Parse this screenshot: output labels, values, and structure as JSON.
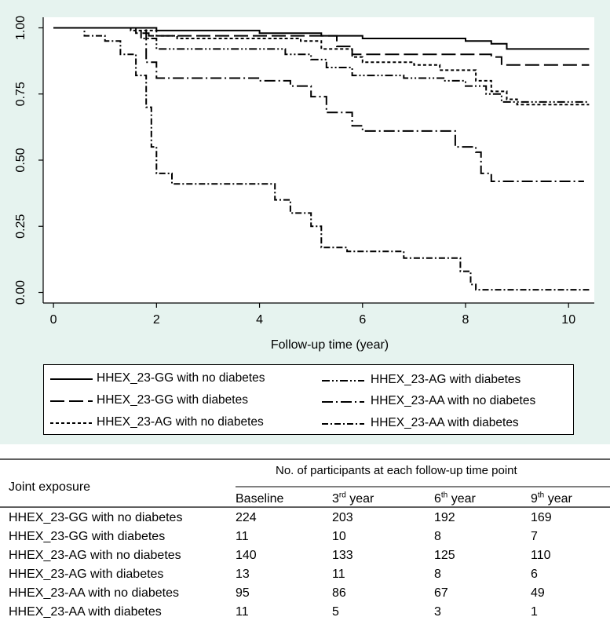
{
  "chart_data": {
    "type": "line",
    "step": true,
    "xlabel": "Follow-up time (year)",
    "ylabel": "",
    "xlim": [
      -0.2,
      10.5
    ],
    "ylim": [
      -0.04,
      1.04
    ],
    "xticks": [
      "0",
      "2",
      "4",
      "6",
      "8",
      "10"
    ],
    "yticks": [
      "0.00",
      "0.25",
      "0.50",
      "0.75",
      "1.00"
    ],
    "grid": false,
    "legend_position": "bottom",
    "series": [
      {
        "name": "HHEX_23-GG with no diabetes",
        "dash": "solid",
        "x": [
          0,
          2.0,
          4.0,
          5.2,
          6.0,
          8.0,
          8.5,
          8.8,
          10.4
        ],
        "y": [
          1.0,
          0.99,
          0.98,
          0.97,
          0.96,
          0.95,
          0.94,
          0.92,
          0.92
        ]
      },
      {
        "name": "HHEX_23-GG with diabetes",
        "dash": "long",
        "x": [
          0,
          1.6,
          1.85,
          5.5,
          5.8,
          8.5,
          8.7,
          10.4
        ],
        "y": [
          1.0,
          0.98,
          0.97,
          0.93,
          0.9,
          0.89,
          0.86,
          0.86
        ]
      },
      {
        "name": "HHEX_23-AG with no diabetes",
        "dash": "short",
        "x": [
          0,
          1.5,
          2.0,
          2.4,
          4.8,
          5.2,
          5.8,
          6.0,
          7.0,
          7.5,
          8.2,
          8.5,
          8.8,
          9.0,
          10.4
        ],
        "y": [
          1.0,
          0.99,
          0.97,
          0.96,
          0.95,
          0.92,
          0.89,
          0.87,
          0.86,
          0.84,
          0.8,
          0.76,
          0.73,
          0.71,
          0.71
        ]
      },
      {
        "name": "HHEX_23-AG with diabetes",
        "dash": "dashdotdot",
        "x": [
          0,
          1.7,
          2.0,
          4.0,
          4.5,
          5.0,
          5.3,
          5.8,
          6.8,
          7.6,
          8.0,
          8.4,
          8.7,
          10.4
        ],
        "y": [
          1.0,
          0.96,
          0.92,
          0.92,
          0.9,
          0.88,
          0.85,
          0.82,
          0.81,
          0.8,
          0.78,
          0.75,
          0.72,
          0.72
        ]
      },
      {
        "name": "HHEX_23-AA with no diabetes",
        "dash": "longdot",
        "x": [
          0,
          1.8,
          2.0,
          3.8,
          4.0,
          4.6,
          5.0,
          5.3,
          5.8,
          6.0,
          7.6,
          7.8,
          8.2,
          8.3,
          8.5,
          10.3
        ],
        "y": [
          1.0,
          0.87,
          0.81,
          0.81,
          0.8,
          0.78,
          0.74,
          0.68,
          0.63,
          0.61,
          0.61,
          0.55,
          0.53,
          0.45,
          0.42,
          0.42
        ]
      },
      {
        "name": "HHEX_23-AA with diabetes",
        "dash": "dashdot",
        "x": [
          0,
          0.6,
          1.0,
          1.3,
          1.6,
          1.8,
          1.9,
          2.0,
          2.3,
          4.0,
          4.3,
          4.6,
          5.0,
          5.2,
          5.7,
          6.8,
          7.9,
          8.1,
          8.2,
          10.4
        ],
        "y": [
          1.0,
          0.97,
          0.95,
          0.9,
          0.82,
          0.7,
          0.55,
          0.45,
          0.41,
          0.41,
          0.35,
          0.3,
          0.25,
          0.17,
          0.155,
          0.13,
          0.08,
          0.03,
          0.01,
          0.01
        ]
      }
    ]
  },
  "legend": {
    "entries": [
      "HHEX_23-GG with no diabetes",
      "HHEX_23-GG with diabetes",
      "HHEX_23-AG with no diabetes",
      "HHEX_23-AG with diabetes",
      "HHEX_23-AA with no diabetes",
      "HHEX_23-AA with diabetes"
    ]
  },
  "table": {
    "row_header": "Joint exposure",
    "group_header": "No. of participants at each follow-up time point",
    "columns": [
      {
        "main": "Baseline",
        "sup": ""
      },
      {
        "main": "3",
        "sup": "rd",
        "rest": " year"
      },
      {
        "main": "6",
        "sup": "th",
        "rest": " year"
      },
      {
        "main": "9",
        "sup": "th",
        "rest": " year"
      }
    ],
    "rows": [
      {
        "label": "HHEX_23-GG with no diabetes",
        "values": [
          "224",
          "203",
          "192",
          "169"
        ]
      },
      {
        "label": "HHEX_23-GG with diabetes",
        "values": [
          "11",
          "10",
          "8",
          "7"
        ]
      },
      {
        "label": "HHEX_23-AG with no diabetes",
        "values": [
          "140",
          "133",
          "125",
          "110"
        ]
      },
      {
        "label": "HHEX_23-AG with diabetes",
        "values": [
          "13",
          "11",
          "8",
          "6"
        ]
      },
      {
        "label": "HHEX_23-AA with no diabetes",
        "values": [
          "95",
          "86",
          "67",
          "49"
        ]
      },
      {
        "label": "HHEX_23-AA with diabetes",
        "values": [
          "11",
          "5",
          "3",
          "1"
        ]
      }
    ]
  }
}
